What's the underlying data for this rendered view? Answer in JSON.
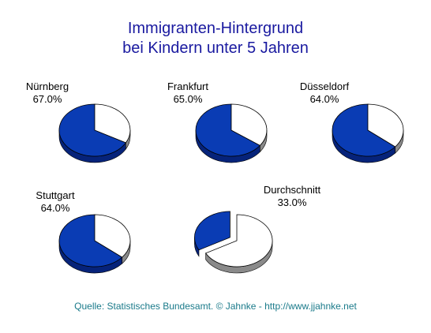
{
  "title_lines": [
    "Immigranten-Hintergrund",
    "bei Kindern unter 5 Jahren"
  ],
  "source": "Quelle: Statistisches Bundesamt. © Jahnke - http://www.jjahnke.net",
  "colors": {
    "slice": "#0a3cb4",
    "rest": "#ffffff",
    "title": "#1a1aa0",
    "source": "#1a7a8a"
  },
  "chart_data": [
    {
      "type": "pie",
      "title": "Nürnberg",
      "label": "67.0%",
      "values": [
        67.0,
        33.0
      ]
    },
    {
      "type": "pie",
      "title": "Frankfurt",
      "label": "65.0%",
      "values": [
        65.0,
        35.0
      ]
    },
    {
      "type": "pie",
      "title": "Düsseldorf",
      "label": "64.0%",
      "values": [
        64.0,
        36.0
      ]
    },
    {
      "type": "pie",
      "title": "Stuttgart",
      "label": "64.0%",
      "values": [
        64.0,
        36.0
      ]
    },
    {
      "type": "pie",
      "title": "Durchschnitt",
      "label": "33.0%",
      "values": [
        33.0,
        67.0
      ],
      "exploded": true
    }
  ]
}
